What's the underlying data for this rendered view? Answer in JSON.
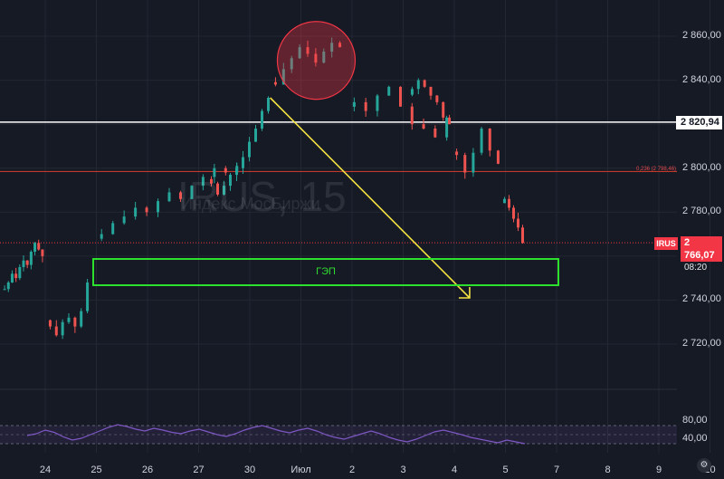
{
  "chart_data": {
    "type": "candlestick",
    "symbol": "IRUS",
    "watermark": "IRUS, 15",
    "watermark_sub": "Индекс МосБиржи",
    "ylim": [
      2708,
      2868
    ],
    "y_ticks": [
      "2 860,00",
      "2 840,00",
      "2 820,00",
      "2 800,00",
      "2 780,00",
      "2 760,00",
      "2 740,00",
      "2 720,00"
    ],
    "y_tick_values": [
      2860,
      2840,
      2820,
      2800,
      2780,
      2760,
      2740,
      2720
    ],
    "x_ticks": [
      "24",
      "25",
      "26",
      "27",
      "30",
      "Июл",
      "2",
      "3",
      "4",
      "5",
      "7",
      "8",
      "9",
      "10"
    ],
    "x_tick_positions": [
      0,
      1,
      2,
      3,
      4,
      5,
      6,
      7,
      8,
      9,
      10,
      11,
      12,
      13
    ],
    "closes": [
      2745,
      2748,
      2752,
      2750,
      2755,
      2758,
      2756,
      2762,
      2766,
      2763,
      2760,
      2728,
      2724,
      2730,
      2732,
      2728,
      2735,
      2748,
      2770,
      2775,
      2778,
      2782,
      2780,
      2785,
      2789,
      2786,
      2792,
      2796,
      2800,
      2798,
      2801,
      2793,
      2788,
      2792,
      2797,
      2800,
      2805,
      2812,
      2818,
      2826,
      2832,
      2838,
      2845,
      2850,
      2855,
      2852,
      2848,
      2853,
      2857,
      2855,
      2830,
      2826,
      2833,
      2837,
      2828,
      2820,
      2818,
      2814,
      2823,
      2836,
      2840,
      2837,
      2833,
      2830,
      2823,
      2820,
      2806,
      2798,
      2807,
      2818,
      2808,
      2802,
      2786,
      2782,
      2777,
      2773,
      2766
    ],
    "resistance_level": 2820.94,
    "resistance_label": "2 820,94",
    "fib_level": 2798.46,
    "fib_label": "0,236 (2 798,46)",
    "last_price": 2766.07,
    "last_price_label": "2 766,07",
    "countdown": "08:20",
    "gap_label": "ГЭП",
    "gap_range": [
      2748,
      2758
    ],
    "arrow": {
      "from": {
        "x": 4.4,
        "y": 2832
      },
      "to": {
        "x": 8.3,
        "y": 2741
      }
    },
    "circle_center": {
      "x": 5.3,
      "y": 2849
    },
    "rsi": {
      "y_ticks": [
        "80,00",
        "40,00"
      ],
      "ylim": [
        20,
        100
      ],
      "values": [
        48,
        52,
        60,
        55,
        45,
        38,
        42,
        50,
        58,
        66,
        72,
        68,
        62,
        58,
        64,
        60,
        55,
        52,
        58,
        62,
        56,
        50,
        46,
        52,
        60,
        66,
        70,
        64,
        58,
        54,
        60,
        64,
        58,
        50,
        44,
        40,
        46,
        52,
        58,
        52,
        44,
        38,
        34,
        40,
        48,
        56,
        60,
        55,
        50,
        44,
        40,
        36,
        32,
        38,
        34,
        30
      ]
    }
  }
}
